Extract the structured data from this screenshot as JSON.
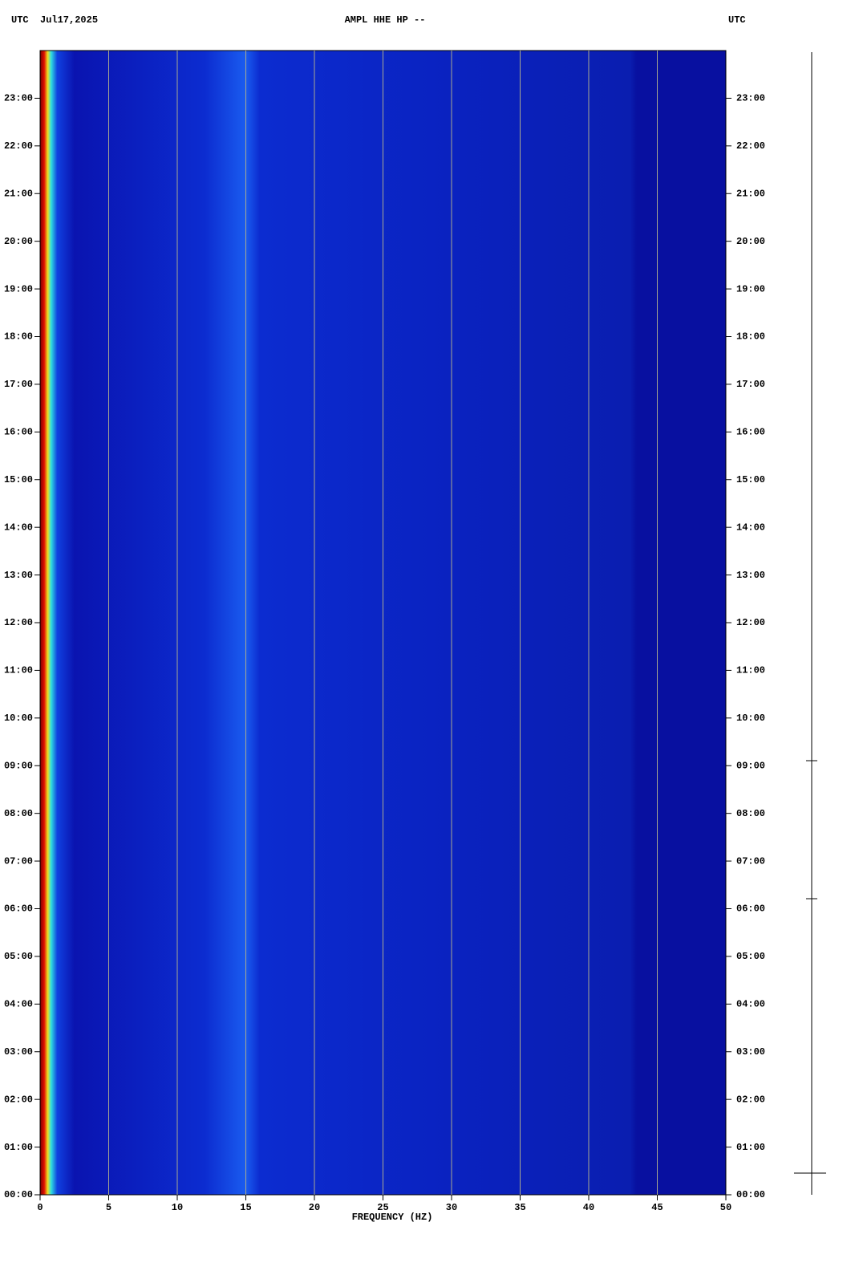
{
  "chart_data": {
    "type": "spectrogram",
    "header_left": "UTC  Jul17,2025",
    "title": "AMPL HHE HP --",
    "header_right": "UTC",
    "xlabel": "FREQUENCY (HZ)",
    "xlim": [
      0,
      50
    ],
    "xticks": [
      0,
      5,
      10,
      15,
      20,
      25,
      30,
      35,
      40,
      45,
      50
    ],
    "ylim": [
      0,
      24
    ],
    "yticks": [
      {
        "value": 0,
        "label": "00:00"
      },
      {
        "value": 1,
        "label": "01:00"
      },
      {
        "value": 2,
        "label": "02:00"
      },
      {
        "value": 3,
        "label": "03:00"
      },
      {
        "value": 4,
        "label": "04:00"
      },
      {
        "value": 5,
        "label": "05:00"
      },
      {
        "value": 6,
        "label": "06:00"
      },
      {
        "value": 7,
        "label": "07:00"
      },
      {
        "value": 8,
        "label": "08:00"
      },
      {
        "value": 9,
        "label": "09:00"
      },
      {
        "value": 10,
        "label": "10:00"
      },
      {
        "value": 11,
        "label": "11:00"
      },
      {
        "value": 12,
        "label": "12:00"
      },
      {
        "value": 13,
        "label": "13:00"
      },
      {
        "value": 14,
        "label": "14:00"
      },
      {
        "value": 15,
        "label": "15:00"
      },
      {
        "value": 16,
        "label": "16:00"
      },
      {
        "value": 17,
        "label": "17:00"
      },
      {
        "value": 18,
        "label": "18:00"
      },
      {
        "value": 19,
        "label": "19:00"
      },
      {
        "value": 20,
        "label": "20:00"
      },
      {
        "value": 21,
        "label": "21:00"
      },
      {
        "value": 22,
        "label": "22:00"
      },
      {
        "value": 23,
        "label": "23:00"
      }
    ],
    "grid": true,
    "grid_color": "#a8a890"
  }
}
